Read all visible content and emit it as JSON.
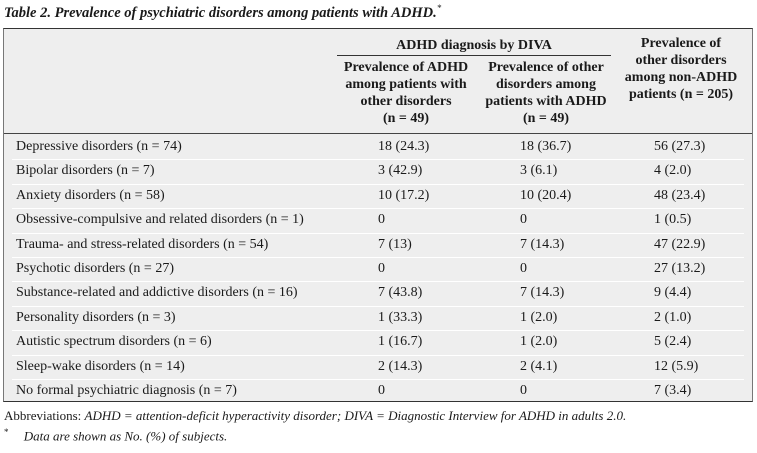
{
  "caption": {
    "text": "Table 2. Prevalence of psychiatric disorders among patients with ADHD.",
    "marker": "*"
  },
  "header": {
    "group": "ADHD diagnosis by DIVA",
    "col1": [
      "Prevalence of ADHD",
      "among patients with",
      "other disorders",
      "(n = 49)"
    ],
    "col2": [
      "Prevalence of other",
      "disorders among",
      "patients with ADHD",
      "(n = 49)"
    ],
    "col3": [
      "Prevalence of",
      "other disorders",
      "among non-ADHD",
      "patients (n = 205)"
    ]
  },
  "rows": [
    {
      "label": "Depressive disorders (n = 74)",
      "c1": "18 (24.3)",
      "c2": "18 (36.7)",
      "c3": "56 (27.3)"
    },
    {
      "label": "Bipolar disorders (n = 7)",
      "c1": "3 (42.9)",
      "c2": "3 (6.1)",
      "c3": "4 (2.0)"
    },
    {
      "label": "Anxiety disorders (n = 58)",
      "c1": "10 (17.2)",
      "c2": "10 (20.4)",
      "c3": "48 (23.4)"
    },
    {
      "label": "Obsessive-compulsive and related disorders (n = 1)",
      "c1": "0",
      "c2": "0",
      "c3": "1 (0.5)"
    },
    {
      "label": "Trauma- and stress-related disorders (n = 54)",
      "c1": "7 (13)",
      "c2": "7 (14.3)",
      "c3": "47 (22.9)"
    },
    {
      "label": "Psychotic disorders (n = 27)",
      "c1": "0",
      "c2": "0",
      "c3": "27 (13.2)"
    },
    {
      "label": "Substance-related and addictive disorders (n = 16)",
      "c1": "7 (43.8)",
      "c2": "7 (14.3)",
      "c3": "9 (4.4)"
    },
    {
      "label": "Personality disorders (n = 3)",
      "c1": "1 (33.3)",
      "c2": "1 (2.0)",
      "c3": "2 (1.0)"
    },
    {
      "label": "Autistic spectrum disorders (n = 6)",
      "c1": "1 (16.7)",
      "c2": "1 (2.0)",
      "c3": "5 (2.4)"
    },
    {
      "label": "Sleep-wake disorders (n = 14)",
      "c1": "2 (14.3)",
      "c2": "2 (4.1)",
      "c3": "12 (5.9)"
    },
    {
      "label": "No formal psychiatric diagnosis (n = 7)",
      "c1": "0",
      "c2": "0",
      "c3": "7 (3.4)"
    }
  ],
  "footer": {
    "abbrev_prefix": "Abbreviations: ",
    "abbrev_text": "ADHD = attention-deficit hyperactivity disorder; DIVA = Diagnostic Interview for ADHD in adults 2.0.",
    "note_marker": "*",
    "note_text": "Data are shown as No. (%) of subjects."
  },
  "colors": {
    "table_bg": "#eeeeee",
    "rule": "#333333",
    "row_separator": "#ffffff"
  }
}
